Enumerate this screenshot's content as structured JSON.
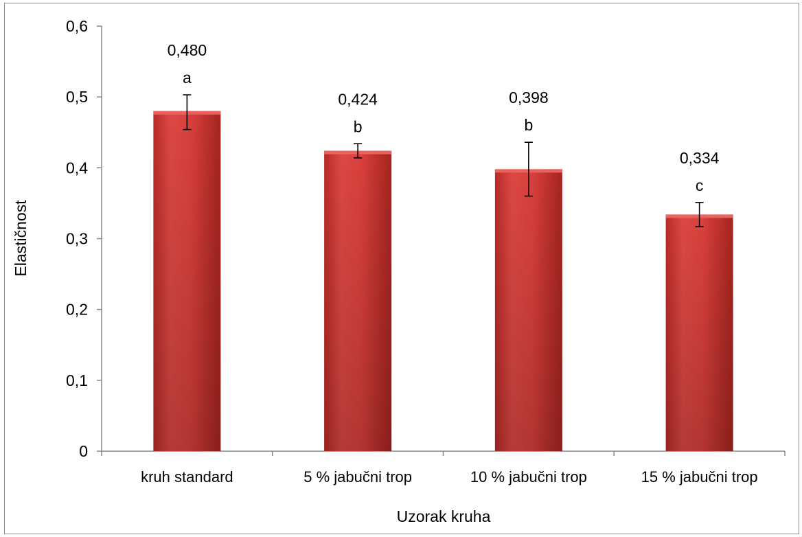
{
  "chart_data": {
    "type": "bar",
    "title": "",
    "xlabel": "Uzorak kruha",
    "ylabel": "Elastičnost",
    "ylim": [
      0,
      0.6
    ],
    "yticks": [
      0,
      0.1,
      0.2,
      0.3,
      0.4,
      0.5,
      0.6
    ],
    "ytick_labels": [
      "0",
      "0,1",
      "0,2",
      "0,3",
      "0,4",
      "0,5",
      "0,6"
    ],
    "categories": [
      "kruh standard",
      "5 % jabučni trop",
      "10 % jabučni trop",
      "15 % jabučni trop"
    ],
    "values": [
      0.48,
      0.424,
      0.398,
      0.334
    ],
    "value_labels": [
      "0,480",
      "0,424",
      "0,398",
      "0,334"
    ],
    "error_low": [
      0.454,
      0.414,
      0.36,
      0.317
    ],
    "error_high": [
      0.503,
      0.434,
      0.436,
      0.351
    ],
    "significance_letters": [
      "a",
      "b",
      "b",
      "c"
    ],
    "grid": false,
    "legend": "none",
    "bar_color": "#d9403c"
  }
}
